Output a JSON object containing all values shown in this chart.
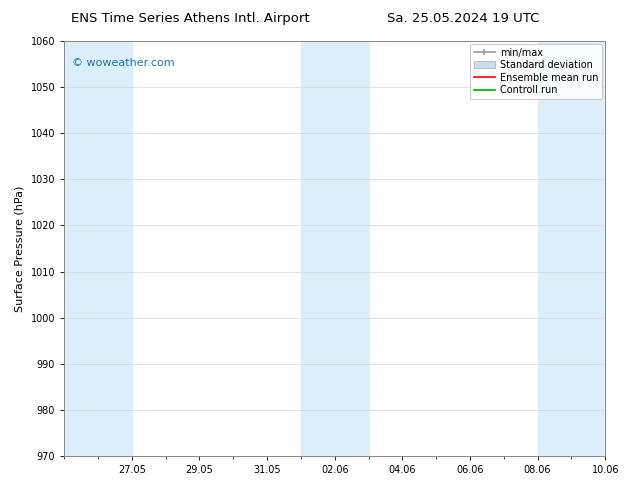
{
  "title_left": "ENS Time Series Athens Intl. Airport",
  "title_right": "Sa. 25.05.2024 19 UTC",
  "ylabel": "Surface Pressure (hPa)",
  "ylim": [
    970,
    1060
  ],
  "yticks": [
    970,
    980,
    990,
    1000,
    1010,
    1020,
    1030,
    1040,
    1050,
    1060
  ],
  "xlabel_dates": [
    "27.05",
    "29.05",
    "31.05",
    "02.06",
    "04.06",
    "06.06",
    "08.06",
    "10.06"
  ],
  "tick_positions": [
    2,
    4,
    6,
    8,
    10,
    12,
    14,
    16
  ],
  "watermark": "© woweather.com",
  "watermark_color": "#1a7abf",
  "bg_color": "#ffffff",
  "plot_bg_color": "#ffffff",
  "shaded_band_color": "#dceef9",
  "shaded_ranges": [
    [
      0,
      2
    ],
    [
      7,
      9
    ],
    [
      14,
      16
    ]
  ],
  "legend_entries": [
    {
      "label": "min/max",
      "color": "#999999",
      "style": "minmax"
    },
    {
      "label": "Standard deviation",
      "color": "#c8ddef",
      "style": "fill"
    },
    {
      "label": "Ensemble mean run",
      "color": "#ff0000",
      "style": "line"
    },
    {
      "label": "Controll run",
      "color": "#00aa00",
      "style": "line"
    }
  ],
  "title_fontsize": 9.5,
  "tick_fontsize": 7,
  "ylabel_fontsize": 8,
  "legend_fontsize": 7,
  "watermark_fontsize": 8,
  "grid_color": "#dddddd",
  "border_color": "#888888",
  "x_min": 0,
  "x_max": 16,
  "total_days": 17
}
